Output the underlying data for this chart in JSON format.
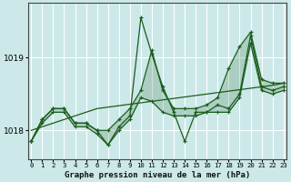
{
  "xlabel": "Graphe pression niveau de la mer (hPa)",
  "background_color": "#cce8e8",
  "grid_color": "#ffffff",
  "line_color": "#1a5c1a",
  "x_labels": [
    "0",
    "1",
    "2",
    "3",
    "4",
    "5",
    "6",
    "7",
    "8",
    "9",
    "10",
    "11",
    "12",
    "13",
    "14",
    "15",
    "16",
    "17",
    "18",
    "19",
    "20",
    "21",
    "22",
    "23"
  ],
  "ylim": [
    1017.6,
    1019.75
  ],
  "yticks": [
    1018,
    1019
  ],
  "xlim": [
    -0.3,
    23.3
  ],
  "series_jagged": [
    1017.85,
    1018.15,
    1018.3,
    1018.3,
    1018.1,
    1018.1,
    1018.0,
    1017.8,
    1018.05,
    1018.2,
    1019.55,
    1019.05,
    1018.6,
    1018.25,
    1017.85,
    1018.25,
    1018.25,
    1018.35,
    1018.3,
    1018.5,
    1019.3,
    1018.6,
    1018.55,
    1018.6
  ],
  "series_upper": [
    1017.85,
    1018.15,
    1018.3,
    1018.3,
    1018.1,
    1018.1,
    1018.0,
    1018.0,
    1018.15,
    1018.3,
    1018.55,
    1019.1,
    1018.55,
    1018.3,
    1018.3,
    1018.3,
    1018.35,
    1018.45,
    1018.85,
    1019.15,
    1019.35,
    1018.7,
    1018.65,
    1018.65
  ],
  "series_lower": [
    1017.85,
    1018.1,
    1018.25,
    1018.25,
    1018.05,
    1018.05,
    1017.95,
    1017.8,
    1018.0,
    1018.15,
    1018.45,
    1018.4,
    1018.25,
    1018.2,
    1018.2,
    1018.2,
    1018.25,
    1018.25,
    1018.25,
    1018.45,
    1019.2,
    1018.55,
    1018.5,
    1018.55
  ],
  "series_trend": [
    1018.0,
    1018.05,
    1018.1,
    1018.15,
    1018.2,
    1018.25,
    1018.3,
    1018.32,
    1018.34,
    1018.36,
    1018.38,
    1018.4,
    1018.42,
    1018.44,
    1018.46,
    1018.48,
    1018.5,
    1018.52,
    1018.54,
    1018.56,
    1018.58,
    1018.6,
    1018.62,
    1018.65
  ]
}
